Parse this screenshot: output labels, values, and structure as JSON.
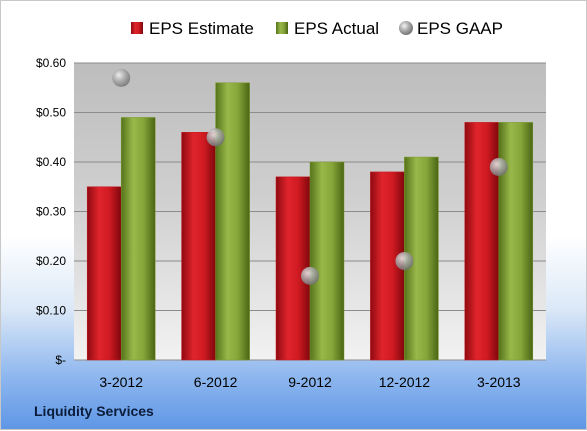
{
  "company": "Liquidity Services",
  "colors": {
    "estimate": "#c8141c",
    "actual": "#7a9a2e",
    "gaap": "#9a9a9a"
  },
  "chart_data": {
    "type": "bar",
    "categories": [
      "3-2012",
      "6-2012",
      "9-2012",
      "12-2012",
      "3-2013"
    ],
    "series": [
      {
        "name": "EPS Estimate",
        "kind": "bar",
        "values": [
          0.35,
          0.46,
          0.37,
          0.38,
          0.48
        ]
      },
      {
        "name": "EPS Actual",
        "kind": "bar",
        "values": [
          0.49,
          0.56,
          0.4,
          0.41,
          0.48
        ]
      },
      {
        "name": "EPS GAAP",
        "kind": "marker",
        "values": [
          0.57,
          0.45,
          0.17,
          0.2,
          0.39
        ]
      }
    ],
    "ylim": [
      0,
      0.6
    ],
    "yticks": [
      0,
      0.1,
      0.2,
      0.3,
      0.4,
      0.5,
      0.6
    ],
    "ytick_labels": [
      "$-",
      "$0.10",
      "$0.20",
      "$0.30",
      "$0.40",
      "$0.50",
      "$0.60"
    ],
    "grid": true,
    "legend": "top"
  }
}
